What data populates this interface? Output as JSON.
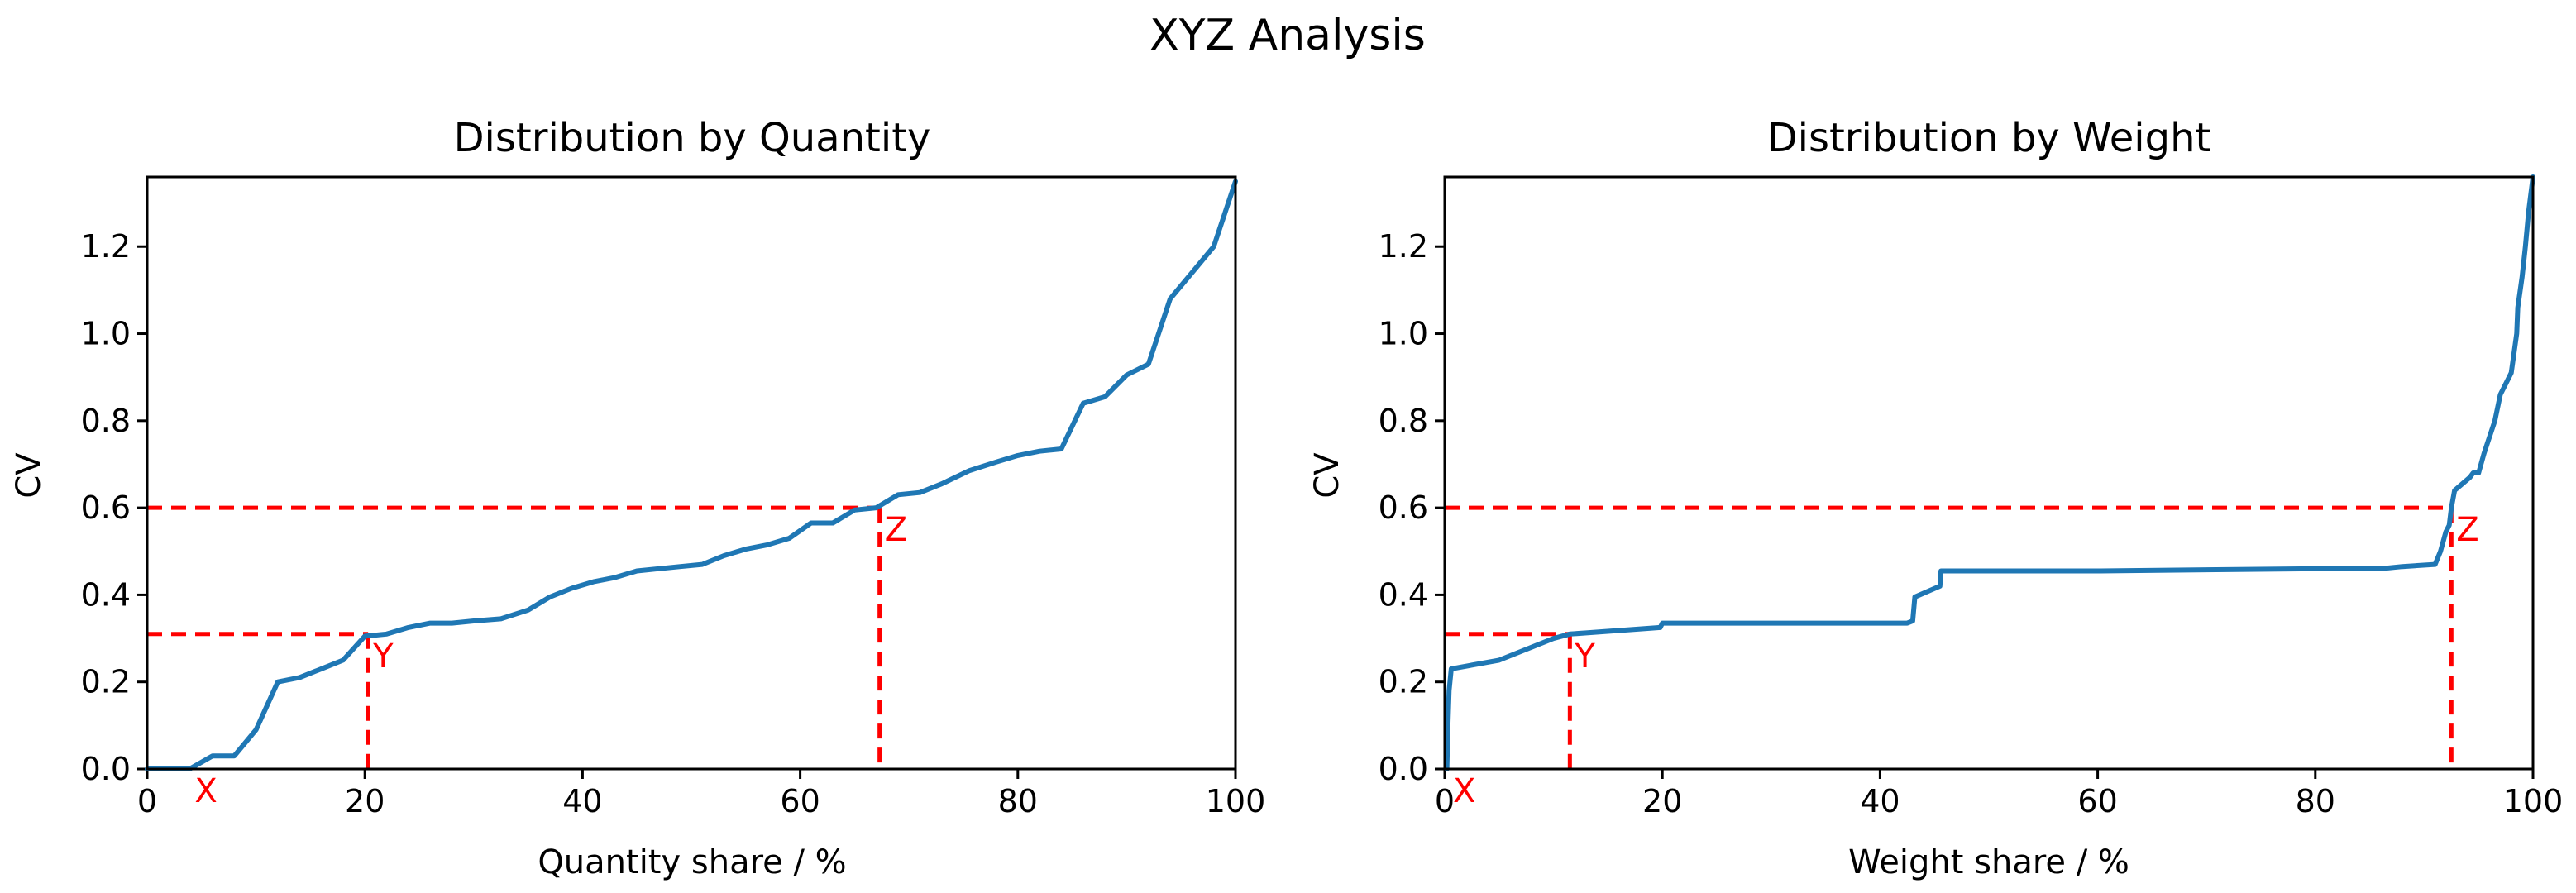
{
  "figure": {
    "title": "XYZ Analysis"
  },
  "chart_data": [
    {
      "type": "line",
      "title": "Distribution by Quantity",
      "xlabel": "Quantity share / %",
      "ylabel": "CV",
      "xlim": [
        0,
        100
      ],
      "ylim": [
        0,
        1.36
      ],
      "xticks": [
        0,
        20,
        40,
        60,
        80,
        100
      ],
      "xtick_labels": [
        "0",
        "20",
        "40",
        "60",
        "80",
        "100"
      ],
      "yticks": [
        0.0,
        0.2,
        0.4,
        0.6,
        0.8,
        1.0,
        1.2
      ],
      "ytick_labels": [
        "0.0",
        "0.2",
        "0.4",
        "0.6",
        "0.8",
        "1.0",
        "1.2"
      ],
      "grid": false,
      "line_color": "#1f77b4",
      "threshold_color": "#ff0000",
      "series": [
        {
          "x": [
            0,
            3.9,
            6,
            8,
            10,
            12,
            14,
            16,
            18,
            20,
            22,
            24,
            26,
            28,
            30,
            32.5,
            35,
            37,
            39,
            41,
            43,
            45,
            47,
            49,
            51,
            53,
            55,
            57,
            59,
            61,
            63,
            65,
            67,
            69,
            71,
            73,
            75.5,
            78,
            80,
            82,
            84,
            86,
            88,
            90,
            92,
            94,
            96,
            98,
            100
          ],
          "y": [
            0,
            0,
            0.03,
            0.03,
            0.09,
            0.2,
            0.21,
            0.23,
            0.25,
            0.305,
            0.31,
            0.325,
            0.335,
            0.335,
            0.34,
            0.345,
            0.365,
            0.395,
            0.415,
            0.43,
            0.44,
            0.455,
            0.46,
            0.465,
            0.47,
            0.49,
            0.505,
            0.515,
            0.53,
            0.565,
            0.565,
            0.595,
            0.6,
            0.63,
            0.635,
            0.655,
            0.685,
            0.705,
            0.72,
            0.73,
            0.735,
            0.84,
            0.855,
            0.905,
            0.93,
            1.08,
            1.14,
            1.2,
            1.35
          ]
        }
      ],
      "thresholds": [
        {
          "label": "X",
          "x": 3.9,
          "y": 0.0
        },
        {
          "label": "Y",
          "x": 20.3,
          "y": 0.31
        },
        {
          "label": "Z",
          "x": 67.3,
          "y": 0.6
        }
      ]
    },
    {
      "type": "line",
      "title": "Distribution by Weight",
      "xlabel": "Weight share / %",
      "ylabel": "CV",
      "xlim": [
        0,
        100
      ],
      "ylim": [
        0,
        1.36
      ],
      "xticks": [
        0,
        20,
        40,
        60,
        80,
        100
      ],
      "xtick_labels": [
        "0",
        "20",
        "40",
        "60",
        "80",
        "100"
      ],
      "yticks": [
        0.0,
        0.2,
        0.4,
        0.6,
        0.8,
        1.0,
        1.2
      ],
      "ytick_labels": [
        "0.0",
        "0.2",
        "0.4",
        "0.6",
        "0.8",
        "1.0",
        "1.2"
      ],
      "grid": false,
      "line_color": "#1f77b4",
      "threshold_color": "#ff0000",
      "series": [
        {
          "x": [
            0.2,
            0.3,
            0.4,
            0.6,
            5,
            10,
            11.5,
            19.8,
            20,
            30,
            40,
            42.5,
            43,
            43.2,
            45.5,
            45.6,
            46,
            60,
            80,
            86,
            88,
            91,
            91.5,
            92,
            92.3,
            92.5,
            92.8,
            93.5,
            94.2,
            94.5,
            95,
            95.5,
            96.5,
            97,
            97.5,
            98,
            98.5,
            98.6,
            99,
            99.3,
            99.6,
            100
          ],
          "y": [
            0,
            0.1,
            0.18,
            0.23,
            0.25,
            0.3,
            0.31,
            0.325,
            0.335,
            0.335,
            0.335,
            0.335,
            0.34,
            0.395,
            0.42,
            0.455,
            0.455,
            0.455,
            0.46,
            0.46,
            0.465,
            0.47,
            0.5,
            0.545,
            0.56,
            0.6,
            0.64,
            0.655,
            0.67,
            0.68,
            0.68,
            0.725,
            0.8,
            0.86,
            0.885,
            0.91,
            1.0,
            1.06,
            1.13,
            1.2,
            1.28,
            1.36
          ]
        }
      ],
      "thresholds": [
        {
          "label": "X",
          "x": 0.3,
          "y": 0.0
        },
        {
          "label": "Y",
          "x": 11.5,
          "y": 0.31
        },
        {
          "label": "Z",
          "x": 92.5,
          "y": 0.6
        }
      ]
    }
  ]
}
